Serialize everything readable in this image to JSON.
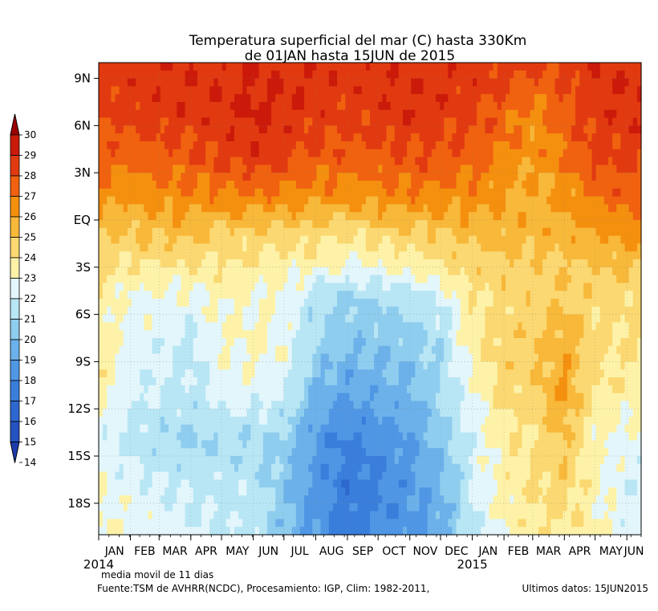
{
  "chart_data": {
    "type": "heatmap",
    "title": "Temperatura superficial del mar (C) hasta 330Km",
    "subtitle": "de 01JAN hasta 15JUN de 2015",
    "xlabel": "",
    "ylabel": "",
    "x_ticks": [
      "JAN",
      "FEB",
      "MAR",
      "APR",
      "MAY",
      "JUN",
      "JUL",
      "AUG",
      "SEP",
      "OCT",
      "NOV",
      "DEC",
      "JAN",
      "FEB",
      "MAR",
      "APR",
      "MAY",
      "JUN"
    ],
    "x_tick_days": [
      0,
      31,
      59,
      90,
      120,
      151,
      181,
      212,
      243,
      273,
      304,
      334,
      365,
      396,
      424,
      455,
      485,
      516
    ],
    "x_years": [
      {
        "label": "2014",
        "day": 0
      },
      {
        "label": "2015",
        "day": 365
      }
    ],
    "x_range_days": [
      0,
      530
    ],
    "y_ticks": [
      "9N",
      "6N",
      "3N",
      "EQ",
      "3S",
      "6S",
      "9S",
      "12S",
      "15S",
      "18S"
    ],
    "y_tick_values": [
      9,
      6,
      3,
      0,
      -3,
      -6,
      -9,
      -12,
      -15,
      -18
    ],
    "y_range": [
      -20,
      10
    ],
    "colorbar": {
      "labels": [
        "30",
        "29",
        "28",
        "27",
        "26",
        "25",
        "24",
        "23",
        "22",
        "21",
        "20",
        "19",
        "18",
        "17",
        "16",
        "15",
        "14"
      ],
      "colors": [
        "#9b0000",
        "#cc1a0a",
        "#e23a10",
        "#f0620f",
        "#f5900f",
        "#f8b83a",
        "#fbd871",
        "#fdf2a8",
        "#e3f6fb",
        "#b8e6f5",
        "#8fcdef",
        "#6cb1ea",
        "#4f97e4",
        "#3a7edc",
        "#2c68cf",
        "#2552c0",
        "#1f3cae"
      ]
    },
    "bands": [
      {
        "lat": 10,
        "values": [
          28.4,
          28.6,
          28.7,
          28.8,
          28.7,
          28.9,
          28.8,
          28.7,
          28.6,
          28.7,
          28.8,
          28.7,
          28.6,
          28.5,
          28.2,
          28.4,
          28.8,
          28.9
        ]
      },
      {
        "lat": 7,
        "values": [
          28.3,
          28.5,
          28.6,
          28.7,
          28.8,
          29.2,
          28.9,
          28.6,
          28.4,
          28.6,
          28.8,
          28.6,
          28.4,
          27.6,
          26.6,
          27.7,
          28.6,
          28.8
        ]
      },
      {
        "lat": 4,
        "values": [
          27.5,
          27.3,
          27.6,
          27.8,
          28.2,
          28.6,
          28.3,
          27.8,
          27.6,
          27.8,
          28.0,
          27.8,
          27.5,
          26.8,
          26.2,
          27.0,
          28.2,
          28.3
        ]
      },
      {
        "lat": 1.5,
        "values": [
          26.6,
          26.2,
          26.5,
          26.8,
          26.7,
          26.9,
          26.6,
          26.5,
          26.3,
          26.5,
          26.7,
          26.6,
          26.6,
          26.0,
          25.6,
          26.2,
          27.2,
          27.5
        ]
      },
      {
        "lat": -1,
        "values": [
          25.3,
          24.9,
          25.2,
          25.0,
          24.8,
          24.6,
          24.6,
          24.3,
          24.1,
          24.4,
          24.7,
          24.9,
          25.3,
          25.5,
          25.6,
          25.6,
          26.0,
          26.2
        ]
      },
      {
        "lat": -3,
        "values": [
          24.3,
          23.8,
          24.0,
          23.8,
          23.9,
          23.7,
          23.5,
          23.1,
          22.8,
          23.0,
          23.3,
          23.9,
          24.5,
          24.7,
          24.6,
          24.8,
          25.0,
          25.1
        ]
      },
      {
        "lat": -5,
        "values": [
          23.6,
          22.7,
          22.9,
          22.6,
          23.2,
          23.0,
          22.8,
          21.4,
          20.8,
          21.0,
          21.3,
          22.1,
          23.8,
          24.4,
          24.5,
          24.9,
          24.3,
          24.3
        ]
      },
      {
        "lat": -8,
        "values": [
          23.9,
          22.5,
          22.3,
          21.7,
          23.0,
          23.2,
          22.8,
          20.9,
          20.2,
          20.3,
          20.5,
          21.2,
          23.4,
          24.6,
          24.8,
          25.8,
          24.2,
          24.0
        ]
      },
      {
        "lat": -11,
        "values": [
          23.5,
          22.3,
          22.0,
          21.6,
          22.4,
          22.6,
          22.2,
          19.8,
          19.0,
          19.4,
          19.8,
          20.9,
          22.8,
          24.3,
          24.6,
          26.2,
          24.0,
          23.6
        ]
      },
      {
        "lat": -14,
        "values": [
          22.4,
          21.6,
          21.2,
          20.9,
          21.0,
          21.1,
          20.6,
          18.7,
          17.7,
          18.3,
          19.0,
          20.4,
          22.3,
          23.6,
          24.0,
          25.0,
          23.1,
          22.6
        ]
      },
      {
        "lat": -17,
        "values": [
          23.1,
          22.4,
          22.1,
          21.8,
          21.7,
          21.6,
          20.4,
          18.6,
          17.3,
          17.8,
          18.6,
          19.8,
          22.1,
          23.4,
          24.0,
          24.6,
          23.3,
          22.3
        ]
      },
      {
        "lat": -20,
        "values": [
          23.2,
          22.8,
          22.7,
          22.3,
          21.9,
          21.7,
          20.2,
          18.6,
          17.6,
          18.1,
          18.6,
          19.3,
          21.6,
          23.2,
          23.7,
          23.9,
          23.2,
          22.5
        ]
      }
    ]
  },
  "footer": {
    "note": "media movil de 11 dias",
    "source": "Fuente:TSM de AVHRR(NCDC), Procesamiento: IGP, Clim: 1982-2011,",
    "last_data": "Ultimos datos: 15JUN2015"
  }
}
